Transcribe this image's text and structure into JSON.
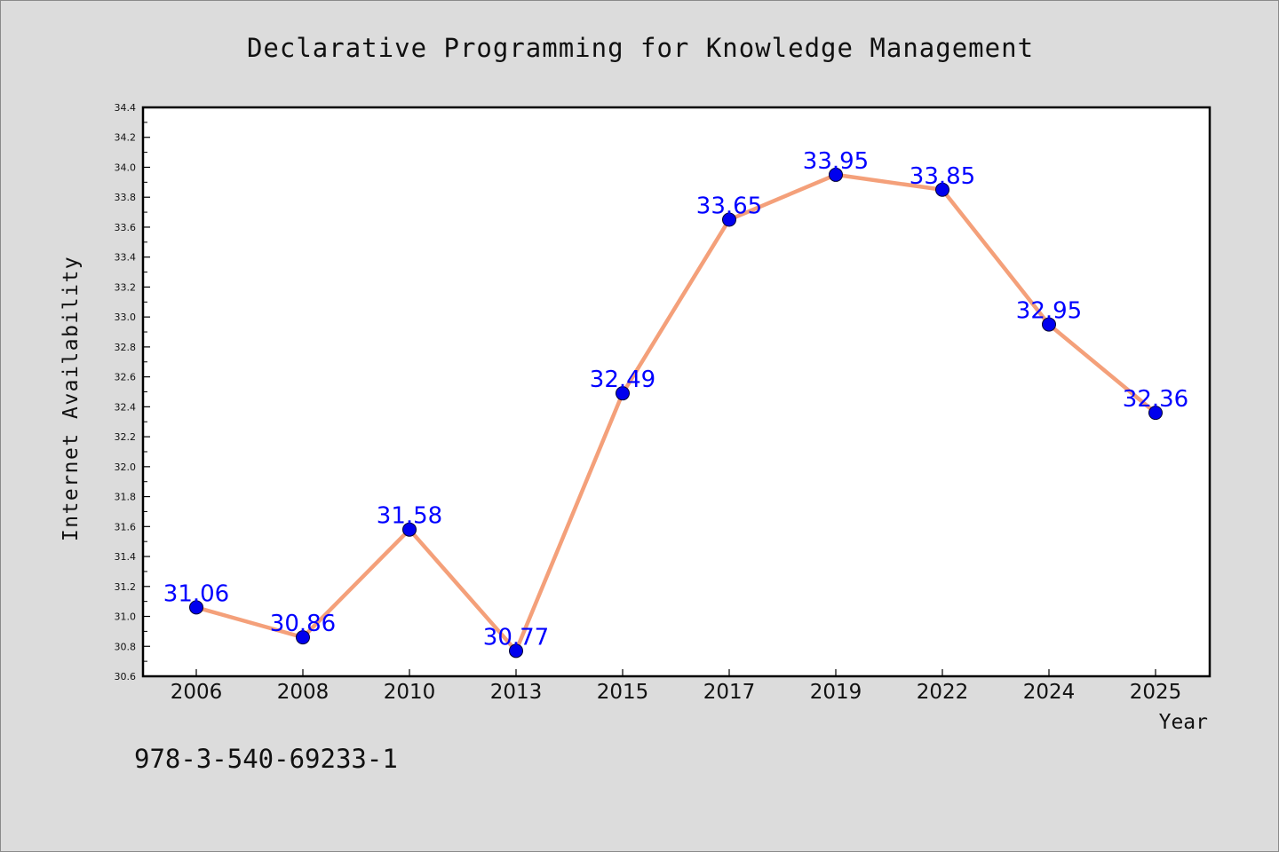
{
  "chart_data": {
    "type": "line",
    "title": "Declarative Programming for Knowledge Management",
    "xlabel": "Year",
    "ylabel": "Internet Availability",
    "categories": [
      "2006",
      "2008",
      "2010",
      "2013",
      "2015",
      "2017",
      "2019",
      "2022",
      "2024",
      "2025"
    ],
    "series": [
      {
        "values": [
          31.06,
          30.86,
          31.58,
          30.77,
          32.49,
          33.65,
          33.95,
          33.85,
          32.95,
          32.36
        ],
        "data_labels": [
          "31.06",
          "30.86",
          "31.58",
          "30.77",
          "32.49",
          "33.65",
          "33.95",
          "33.85",
          "32.95",
          "32.36"
        ]
      }
    ],
    "ylim": [
      30.6,
      34.4
    ],
    "yticks": [
      "30.6",
      "30.8",
      "31.0",
      "31.2",
      "31.4",
      "31.6",
      "31.8",
      "32.0",
      "32.2",
      "32.4",
      "32.6",
      "32.8",
      "33.0",
      "33.2",
      "33.4",
      "33.6",
      "33.8",
      "34.0",
      "34.2",
      "34.4"
    ],
    "grid": false,
    "line_color": "#f4a07a",
    "marker_color": "#0000ee",
    "label_color": "#0000ff",
    "background": "#dcdcdc",
    "plot_background": "#ffffff"
  },
  "footer": {
    "isbn": "978-3-540-69233-1"
  }
}
